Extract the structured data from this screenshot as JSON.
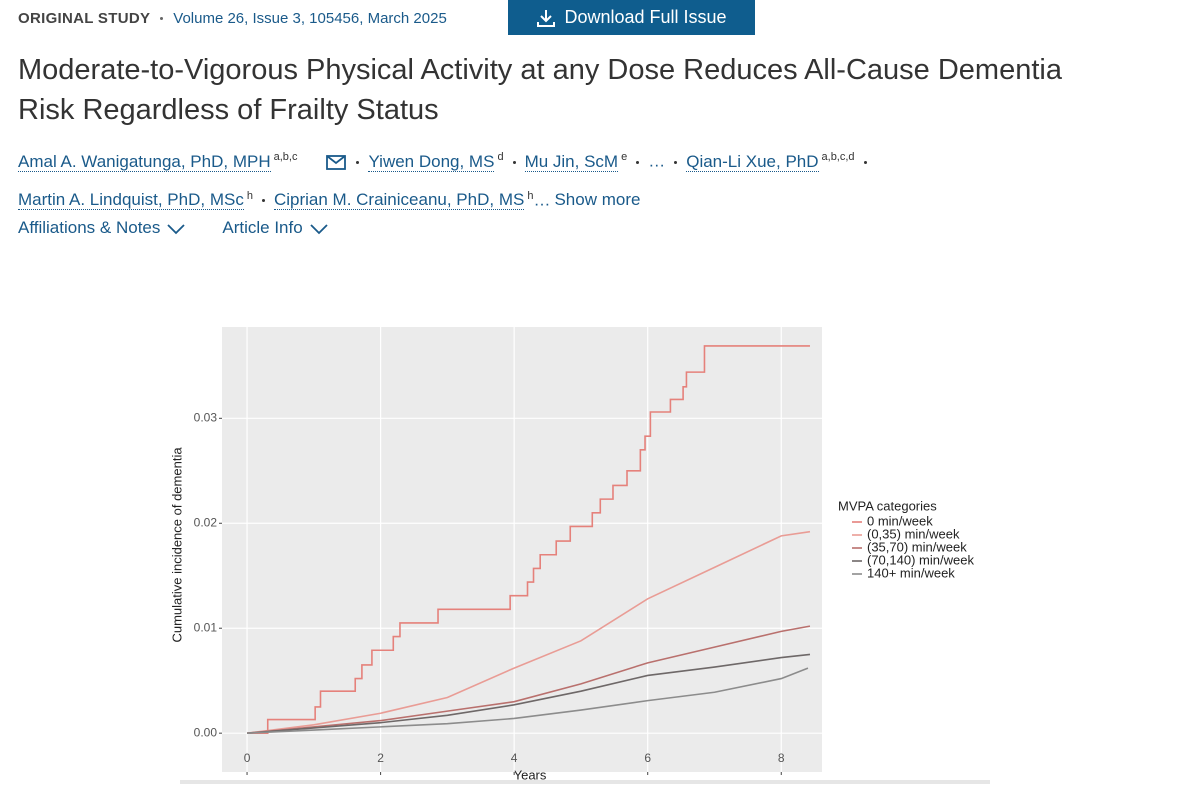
{
  "header": {
    "label": "ORIGINAL STUDY",
    "citation": "Volume 26, Issue 3, 105456, March 2025",
    "download": "Download Full Issue",
    "title_line1": "Moderate-to-Vigorous Physical Activity at any Dose Reduces All-Cause Dementia",
    "title_line2": "Risk Regardless of Frailty Status"
  },
  "authors": [
    {
      "name": "Amal A. Wanigatunga, PhD, MPH",
      "sup": "a,b,c"
    },
    {
      "name": "Yiwen Dong, MS",
      "sup": "d"
    },
    {
      "name": "Mu Jin, ScM",
      "sup": "e"
    },
    {
      "name": "Qian-Li Xue, PhD",
      "sup": "a,b,c,d"
    },
    {
      "name": "Martin A. Lindquist, PhD, MSc",
      "sup": "h"
    },
    {
      "name": "Ciprian M. Crainiceanu, PhD, MS",
      "sup": "h"
    }
  ],
  "ellipsis": "…",
  "show_more": "Show more",
  "links": [
    "Affiliations & Notes",
    "Article Info"
  ],
  "chart_data": {
    "type": "line",
    "x_label": "Years",
    "y_label": "Cumulative incidence of dementia",
    "legend_title": "MVPA categories",
    "legend": "right",
    "grid": true,
    "xlim": [
      -0.375,
      8.61
    ],
    "xticks": [
      0,
      2,
      4,
      6,
      8
    ],
    "ylim": [
      -0.0037,
      0.0387
    ],
    "yticks": [
      {
        "value": 0,
        "label": "0.00"
      },
      0.01,
      0.02,
      0.03
    ],
    "series": [
      {
        "name": "0 min/week",
        "color": "#e5817b",
        "step": true,
        "x": [
          0,
          0.31,
          1.02,
          1.1,
          1.62,
          1.72,
          1.87,
          2.19,
          2.29,
          2.86,
          3.94,
          4.2,
          4.29,
          4.39,
          4.63,
          4.84,
          5.17,
          5.29,
          5.48,
          5.69,
          5.89,
          5.96,
          6.04,
          6.34,
          6.53,
          6.58,
          6.85,
          8.43
        ],
        "values": [
          0,
          0.0013,
          0.0025,
          0.004,
          0.0052,
          0.0065,
          0.0079,
          0.0092,
          0.0105,
          0.0118,
          0.0131,
          0.0144,
          0.0157,
          0.017,
          0.0183,
          0.0197,
          0.021,
          0.0223,
          0.0236,
          0.025,
          0.027,
          0.0283,
          0.0306,
          0.0318,
          0.033,
          0.0344,
          0.0369,
          0.0369
        ]
      },
      {
        "name": "(0,35) min/week",
        "color": "#e99c95",
        "x": [
          0,
          1,
          2,
          3,
          4,
          5,
          6,
          7,
          8,
          8.43
        ],
        "values": [
          0,
          0.0008,
          0.0019,
          0.0034,
          0.0062,
          0.0088,
          0.0128,
          0.0158,
          0.0188,
          0.0192
        ]
      },
      {
        "name": "(35,70) min/week",
        "color": "#b9706d",
        "x": [
          0,
          1,
          2,
          3,
          4,
          5,
          6,
          7,
          8,
          8.43
        ],
        "values": [
          0,
          0.0006,
          0.0012,
          0.0021,
          0.003,
          0.0047,
          0.0067,
          0.0082,
          0.0097,
          0.0102
        ]
      },
      {
        "name": "(70,140) min/week",
        "color": "#6e6868",
        "x": [
          0,
          1,
          2,
          3,
          4,
          5,
          6,
          7,
          8,
          8.43
        ],
        "values": [
          0,
          0.0005,
          0.001,
          0.0017,
          0.0027,
          0.004,
          0.0055,
          0.0063,
          0.0072,
          0.0075
        ]
      },
      {
        "name": "140+ min/week",
        "color": "#8c8c8c",
        "x": [
          0,
          1,
          2,
          3,
          4,
          5,
          6,
          7,
          8,
          8.4
        ],
        "values": [
          0,
          0.0003,
          0.0006,
          0.0009,
          0.0014,
          0.0022,
          0.0031,
          0.0039,
          0.0052,
          0.0062
        ]
      }
    ]
  }
}
